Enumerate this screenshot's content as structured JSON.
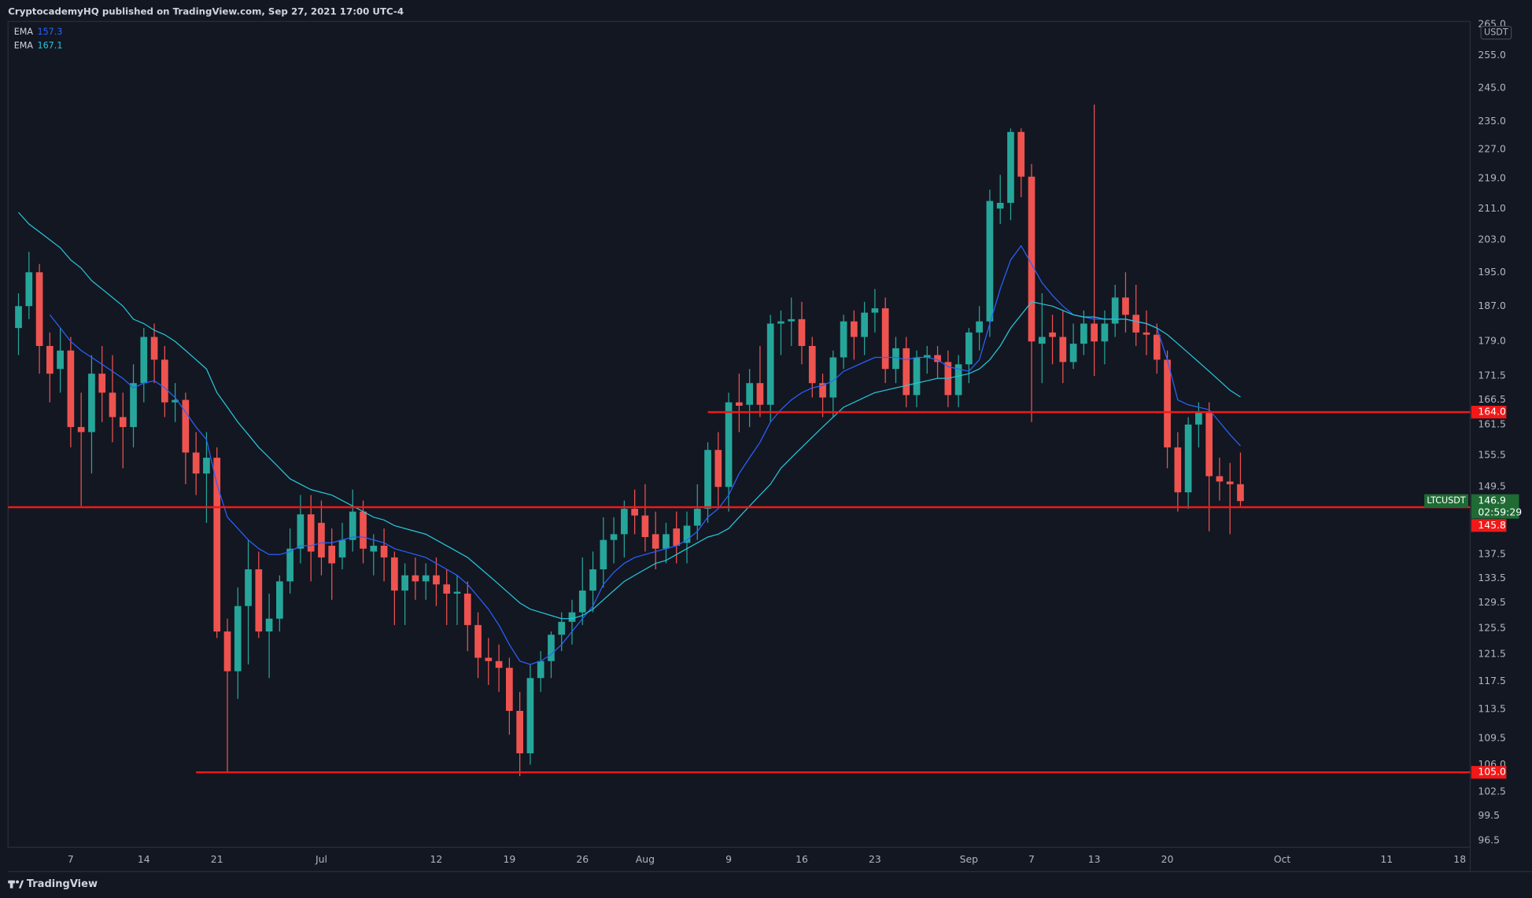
{
  "header": {
    "title": "CryptocademyHQ published on TradingView.com, Sep 27, 2021 17:00 UTC-4"
  },
  "footer": {
    "brand": "TradingView"
  },
  "chart_data": {
    "type": "candlestick",
    "symbol": "LTCUSDT",
    "y_unit": "USDT",
    "countdown": "02:59:29",
    "log_scale": true,
    "grid": false,
    "up_color": "#26a69a",
    "down_color": "#ef5350",
    "level_color": "#f21818",
    "price_box_color": "#1f6b34",
    "ylim": [
      95.7,
      266
    ],
    "yticks": [
      {
        "value": 265,
        "label": "265.0"
      },
      {
        "value": 255,
        "label": "255.0"
      },
      {
        "value": 245,
        "label": "245.0"
      },
      {
        "value": 235,
        "label": "235.0"
      },
      {
        "value": 227,
        "label": "227.0"
      },
      {
        "value": 219,
        "label": "219.0"
      },
      {
        "value": 211,
        "label": "211.0"
      },
      {
        "value": 203,
        "label": "203.0"
      },
      {
        "value": 195,
        "label": "195.0"
      },
      {
        "value": 187,
        "label": "187.0"
      },
      {
        "value": 179,
        "label": "179.0"
      },
      171.5,
      166.5,
      161.5,
      155.5,
      149.5,
      137.5,
      133.5,
      129.5,
      125.5,
      121.5,
      117.5,
      113.5,
      109.5,
      {
        "value": 106,
        "label": "106.0"
      },
      102.5,
      99.5,
      96.5
    ],
    "xlim": [
      "2021-06-01",
      "2021-10-19"
    ],
    "xticks": [
      {
        "value": "2021-06-07",
        "label": "7"
      },
      {
        "value": "2021-06-14",
        "label": "14"
      },
      {
        "value": "2021-06-21",
        "label": "21"
      },
      {
        "value": "2021-07-01",
        "label": "Jul"
      },
      {
        "value": "2021-07-12",
        "label": "12"
      },
      {
        "value": "2021-07-19",
        "label": "19"
      },
      {
        "value": "2021-07-26",
        "label": "26"
      },
      {
        "value": "2021-08-01",
        "label": "Aug"
      },
      {
        "value": "2021-08-09",
        "label": "9"
      },
      {
        "value": "2021-08-16",
        "label": "16"
      },
      {
        "value": "2021-08-23",
        "label": "23"
      },
      {
        "value": "2021-09-01",
        "label": "Sep"
      },
      {
        "value": "2021-09-07",
        "label": "7"
      },
      {
        "value": "2021-09-13",
        "label": "13"
      },
      {
        "value": "2021-09-20",
        "label": "20"
      },
      {
        "value": "2021-10-01",
        "label": "Oct"
      },
      {
        "value": "2021-10-11",
        "label": "11"
      },
      {
        "value": "2021-10-18",
        "label": "18"
      }
    ],
    "x": [
      "2021-06-02",
      "2021-06-03",
      "2021-06-04",
      "2021-06-05",
      "2021-06-06",
      "2021-06-07",
      "2021-06-08",
      "2021-06-09",
      "2021-06-10",
      "2021-06-11",
      "2021-06-12",
      "2021-06-13",
      "2021-06-14",
      "2021-06-15",
      "2021-06-16",
      "2021-06-17",
      "2021-06-18",
      "2021-06-19",
      "2021-06-20",
      "2021-06-21",
      "2021-06-22",
      "2021-06-23",
      "2021-06-24",
      "2021-06-25",
      "2021-06-26",
      "2021-06-27",
      "2021-06-28",
      "2021-06-29",
      "2021-06-30",
      "2021-07-01",
      "2021-07-02",
      "2021-07-03",
      "2021-07-04",
      "2021-07-05",
      "2021-07-06",
      "2021-07-07",
      "2021-07-08",
      "2021-07-09",
      "2021-07-10",
      "2021-07-11",
      "2021-07-12",
      "2021-07-13",
      "2021-07-14",
      "2021-07-15",
      "2021-07-16",
      "2021-07-17",
      "2021-07-18",
      "2021-07-19",
      "2021-07-20",
      "2021-07-21",
      "2021-07-22",
      "2021-07-23",
      "2021-07-24",
      "2021-07-25",
      "2021-07-26",
      "2021-07-27",
      "2021-07-28",
      "2021-07-29",
      "2021-07-30",
      "2021-07-31",
      "2021-08-01",
      "2021-08-02",
      "2021-08-03",
      "2021-08-04",
      "2021-08-05",
      "2021-08-06",
      "2021-08-07",
      "2021-08-08",
      "2021-08-09",
      "2021-08-10",
      "2021-08-11",
      "2021-08-12",
      "2021-08-13",
      "2021-08-14",
      "2021-08-15",
      "2021-08-16",
      "2021-08-17",
      "2021-08-18",
      "2021-08-19",
      "2021-08-20",
      "2021-08-21",
      "2021-08-22",
      "2021-08-23",
      "2021-08-24",
      "2021-08-25",
      "2021-08-26",
      "2021-08-27",
      "2021-08-28",
      "2021-08-29",
      "2021-08-30",
      "2021-08-31",
      "2021-09-01",
      "2021-09-02",
      "2021-09-03",
      "2021-09-04",
      "2021-09-05",
      "2021-09-06",
      "2021-09-07",
      "2021-09-08",
      "2021-09-09",
      "2021-09-10",
      "2021-09-11",
      "2021-09-12",
      "2021-09-13",
      "2021-09-14",
      "2021-09-15",
      "2021-09-16",
      "2021-09-17",
      "2021-09-18",
      "2021-09-19",
      "2021-09-20",
      "2021-09-21",
      "2021-09-22",
      "2021-09-23",
      "2021-09-24",
      "2021-09-25",
      "2021-09-26",
      "2021-09-27"
    ],
    "open": [
      182,
      187,
      195,
      178,
      173,
      177,
      161,
      160,
      172,
      168,
      163,
      161,
      170,
      180,
      175,
      166,
      166.5,
      156,
      152,
      155,
      125,
      119,
      129,
      135,
      125,
      127,
      133,
      138.5,
      144.5,
      143,
      139,
      137,
      140,
      145,
      138,
      139,
      137,
      131.5,
      134,
      133,
      134,
      132.5,
      131,
      131,
      126,
      121,
      120.5,
      119.5,
      113.3,
      107.5,
      118,
      120.5,
      124.5,
      126.5,
      128,
      131.5,
      135,
      140,
      141,
      145.5,
      144.3,
      141,
      138.5,
      142,
      139.5,
      142.5,
      145.5,
      156.5,
      149.5,
      166,
      165.5,
      170,
      165.5,
      183,
      183.5,
      184,
      178,
      170,
      167,
      175.5,
      183.5,
      180,
      185.5,
      186.5,
      173,
      177.5,
      167.5,
      175.5,
      176,
      174.5,
      167.5,
      174,
      181,
      183.5,
      211,
      212.5,
      232,
      219.5,
      178.5,
      181,
      180,
      174.5,
      178.5,
      183,
      179,
      183,
      189,
      185,
      181,
      180.5,
      175,
      157,
      148.5,
      161.5,
      164,
      151.5,
      150.5,
      150
    ],
    "high": [
      190,
      200,
      197,
      181,
      182,
      180,
      168,
      176,
      178,
      176,
      168,
      174,
      182,
      183,
      178,
      170,
      168,
      160,
      160,
      157,
      127,
      132,
      140,
      138,
      131,
      134,
      142,
      148,
      148,
      147,
      142,
      143,
      149,
      147,
      141,
      142,
      138,
      136,
      137,
      136,
      137,
      135,
      134,
      133,
      128,
      124,
      123,
      121,
      116,
      120,
      122,
      125,
      128,
      130,
      137,
      138,
      144,
      144,
      147,
      149,
      150,
      145,
      143,
      145,
      145,
      150,
      158,
      160,
      168,
      172,
      173,
      178,
      185,
      186,
      189,
      188,
      180,
      172,
      177,
      185,
      186,
      188,
      191,
      189,
      180,
      180,
      177,
      178,
      178,
      177,
      176,
      182,
      187,
      216,
      220,
      233,
      233,
      223,
      190,
      185,
      186,
      183,
      186,
      240,
      186,
      192,
      195,
      192,
      186,
      183,
      177,
      160,
      163,
      166,
      166,
      155,
      154,
      156
    ],
    "low": [
      176,
      184,
      172,
      166,
      168,
      157,
      146,
      152,
      162,
      158,
      153,
      157,
      166,
      170,
      163,
      162,
      150,
      148,
      143,
      124,
      105,
      115,
      120,
      124,
      118,
      125,
      131,
      136,
      133,
      134,
      130,
      135,
      138,
      136,
      134,
      133,
      126,
      126,
      130,
      130,
      129,
      126,
      126,
      122,
      118,
      117,
      116,
      110,
      104.5,
      106,
      116,
      118,
      122,
      123,
      126,
      128,
      132,
      136,
      137,
      141,
      138,
      135,
      136,
      136,
      136,
      140,
      143,
      146,
      145,
      160,
      161,
      163,
      162,
      176,
      178,
      174,
      167,
      163,
      163,
      173,
      175,
      176,
      181,
      170,
      170,
      165,
      165,
      172,
      171,
      165,
      165,
      170,
      177,
      180,
      207,
      208,
      214,
      162,
      170,
      174,
      170,
      173,
      176,
      171.5,
      174,
      180,
      181,
      178,
      176,
      172,
      153,
      145,
      145.5,
      157,
      141.5,
      147,
      141,
      146
    ],
    "close": [
      187,
      195,
      178,
      172,
      177,
      161,
      160,
      172,
      168,
      163,
      161,
      170,
      180,
      175,
      166,
      166.5,
      156,
      152,
      155,
      125,
      119,
      129,
      135,
      125,
      127,
      133,
      138.5,
      144.5,
      138,
      137,
      136,
      140,
      145,
      138.5,
      139,
      137,
      131.5,
      134,
      133,
      134,
      132.5,
      131,
      131.3,
      126,
      121,
      120.5,
      119.5,
      113.3,
      107.5,
      118,
      120.5,
      124.5,
      126.5,
      128,
      131.5,
      135,
      140,
      141,
      145.5,
      144.3,
      140.5,
      138.5,
      141,
      139,
      142.5,
      145.5,
      156.5,
      149.5,
      166,
      165.3,
      170,
      165.5,
      183,
      183.5,
      184,
      178,
      170,
      167,
      175.5,
      183.5,
      180,
      185.5,
      186.5,
      173,
      177.5,
      167.5,
      175.5,
      176,
      174.5,
      167.5,
      174,
      181,
      183.5,
      213,
      212.5,
      232,
      219.5,
      179,
      180,
      180,
      174.5,
      178.5,
      183,
      179,
      183,
      189,
      185,
      181,
      180.5,
      175,
      157,
      148.5,
      161.5,
      164,
      151.5,
      150.5,
      150,
      146.9
    ],
    "series": [
      {
        "name": "EMA",
        "color": "#2962ff",
        "values": [
          null,
          null,
          null,
          185,
          182,
          179,
          177,
          175.5,
          174,
          172.5,
          171,
          169,
          170,
          170.5,
          169,
          167,
          164,
          161,
          158.5,
          150,
          144,
          142,
          140,
          138.5,
          137.5,
          137.5,
          138,
          139,
          139,
          139.5,
          139.5,
          140,
          140.5,
          140.5,
          140,
          139.5,
          138.5,
          138,
          137.5,
          137,
          136,
          135,
          134,
          132.5,
          130.5,
          128.5,
          126,
          123,
          120.5,
          120,
          120.5,
          121.5,
          123,
          125,
          127,
          129,
          132.5,
          134.5,
          136,
          137,
          137.5,
          138,
          138.5,
          139,
          140,
          141.5,
          144,
          145.5,
          148,
          152,
          155,
          158,
          162,
          164.5,
          166.5,
          168,
          169,
          169.5,
          170.5,
          172.5,
          173.5,
          174.5,
          175.5,
          175.5,
          175.5,
          175,
          175.5,
          175.5,
          175,
          173.5,
          173,
          172.5,
          175,
          183,
          191,
          198,
          201.5,
          197,
          192.5,
          189.5,
          187,
          185,
          184.5,
          184,
          184,
          184,
          184,
          183.5,
          183,
          182,
          175,
          166.5,
          165.5,
          165,
          164.5,
          162,
          159.5,
          157.3
        ]
      },
      {
        "name": "EMA",
        "color": "#26c6da",
        "values": [
          210,
          207,
          205,
          203,
          201,
          198,
          196,
          193,
          191,
          189,
          187,
          184,
          183,
          181.5,
          180.5,
          179,
          177,
          175,
          173,
          168,
          165,
          162,
          159.5,
          157,
          155,
          153,
          151,
          150,
          149,
          148.5,
          148,
          147,
          146,
          145,
          144,
          143.5,
          142.5,
          142,
          141.5,
          141,
          140,
          139,
          138,
          137,
          135.5,
          134,
          132.5,
          131,
          129.5,
          128.5,
          128,
          127.5,
          127,
          127,
          127.5,
          128.5,
          130,
          131.5,
          133,
          134,
          135,
          136,
          136.5,
          137.5,
          138.5,
          139.5,
          140.5,
          141,
          142,
          144,
          146,
          148,
          150,
          153,
          155,
          157,
          159,
          161,
          163,
          165,
          166,
          167,
          168,
          168.5,
          169,
          169.5,
          170,
          170.5,
          171,
          171,
          171.5,
          172,
          173,
          175,
          178,
          182,
          185,
          188,
          187.5,
          187,
          186,
          185,
          184.5,
          184.5,
          184,
          184,
          184,
          183.5,
          183,
          182,
          180.5,
          178.5,
          176.5,
          174.5,
          172.5,
          170.5,
          168.5,
          167.1
        ]
      }
    ],
    "levels": [
      {
        "value": 164,
        "label": "164.0",
        "from": "2021-08-07"
      },
      {
        "value": 145.8,
        "label": "145.8"
      },
      {
        "value": 105,
        "label": "105.0",
        "from": "2021-06-19"
      }
    ]
  }
}
